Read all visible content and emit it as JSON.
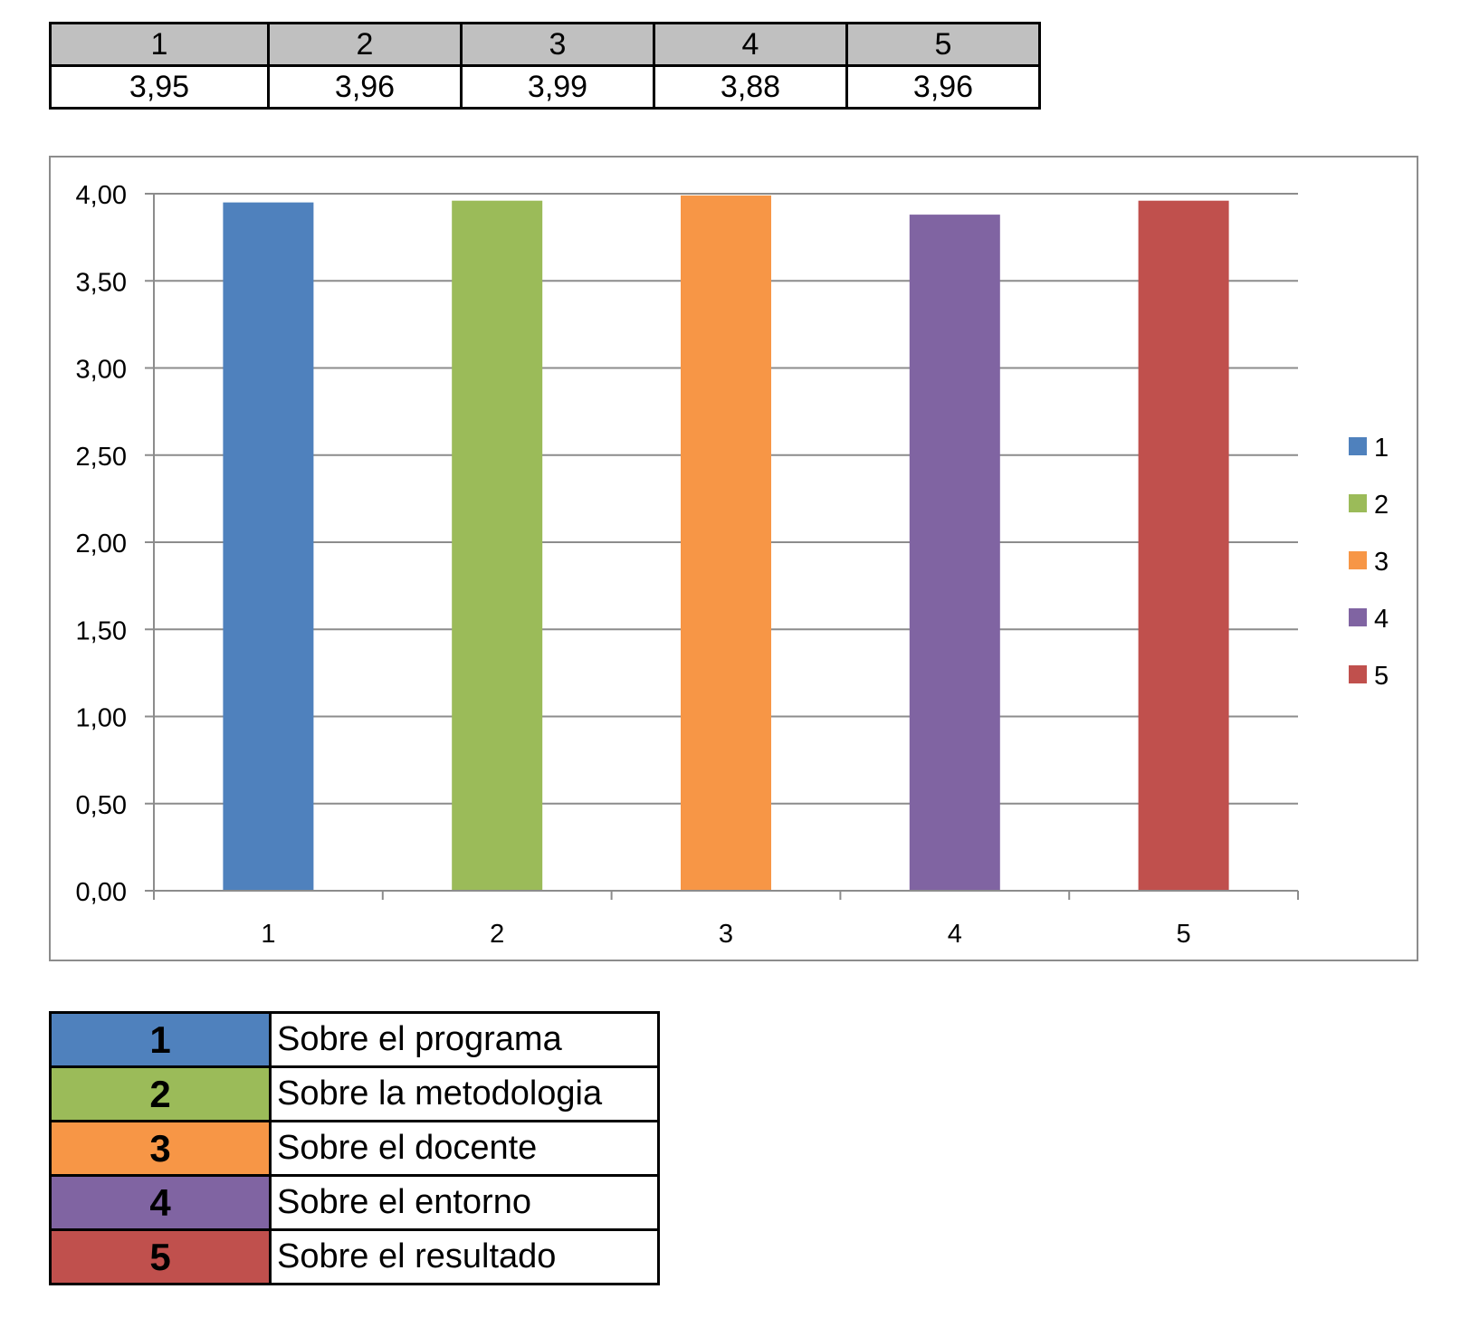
{
  "top_table": {
    "headers": [
      "1",
      "2",
      "3",
      "4",
      "5"
    ],
    "values": [
      "3,95",
      "3,96",
      "3,99",
      "3,88",
      "3,96"
    ]
  },
  "chart_data": {
    "type": "bar",
    "categories": [
      "1",
      "2",
      "3",
      "4",
      "5"
    ],
    "values": [
      3.95,
      3.96,
      3.99,
      3.88,
      3.96
    ],
    "colors": [
      "#4f81bd",
      "#9bbb59",
      "#f79646",
      "#8064a2",
      "#c0504d"
    ],
    "ylim": [
      0,
      4
    ],
    "yticks": [
      "0,00",
      "0,50",
      "1,00",
      "1,50",
      "2,00",
      "2,50",
      "3,00",
      "3,50",
      "4,00"
    ],
    "ytick_values": [
      0,
      0.5,
      1,
      1.5,
      2,
      2.5,
      3,
      3.5,
      4
    ],
    "grid": true,
    "legend": {
      "position": "right",
      "entries": [
        "1",
        "2",
        "3",
        "4",
        "5"
      ]
    }
  },
  "key_table": {
    "rows": [
      {
        "num": "1",
        "label": "Sobre el programa",
        "color": "#4f81bd"
      },
      {
        "num": "2",
        "label": "Sobre la metodologia",
        "color": "#9bbb59"
      },
      {
        "num": "3",
        "label": "Sobre el docente",
        "color": "#f79646"
      },
      {
        "num": "4",
        "label": "Sobre el entorno",
        "color": "#8064a2"
      },
      {
        "num": "5",
        "label": "Sobre el resultado",
        "color": "#c0504d"
      }
    ]
  }
}
